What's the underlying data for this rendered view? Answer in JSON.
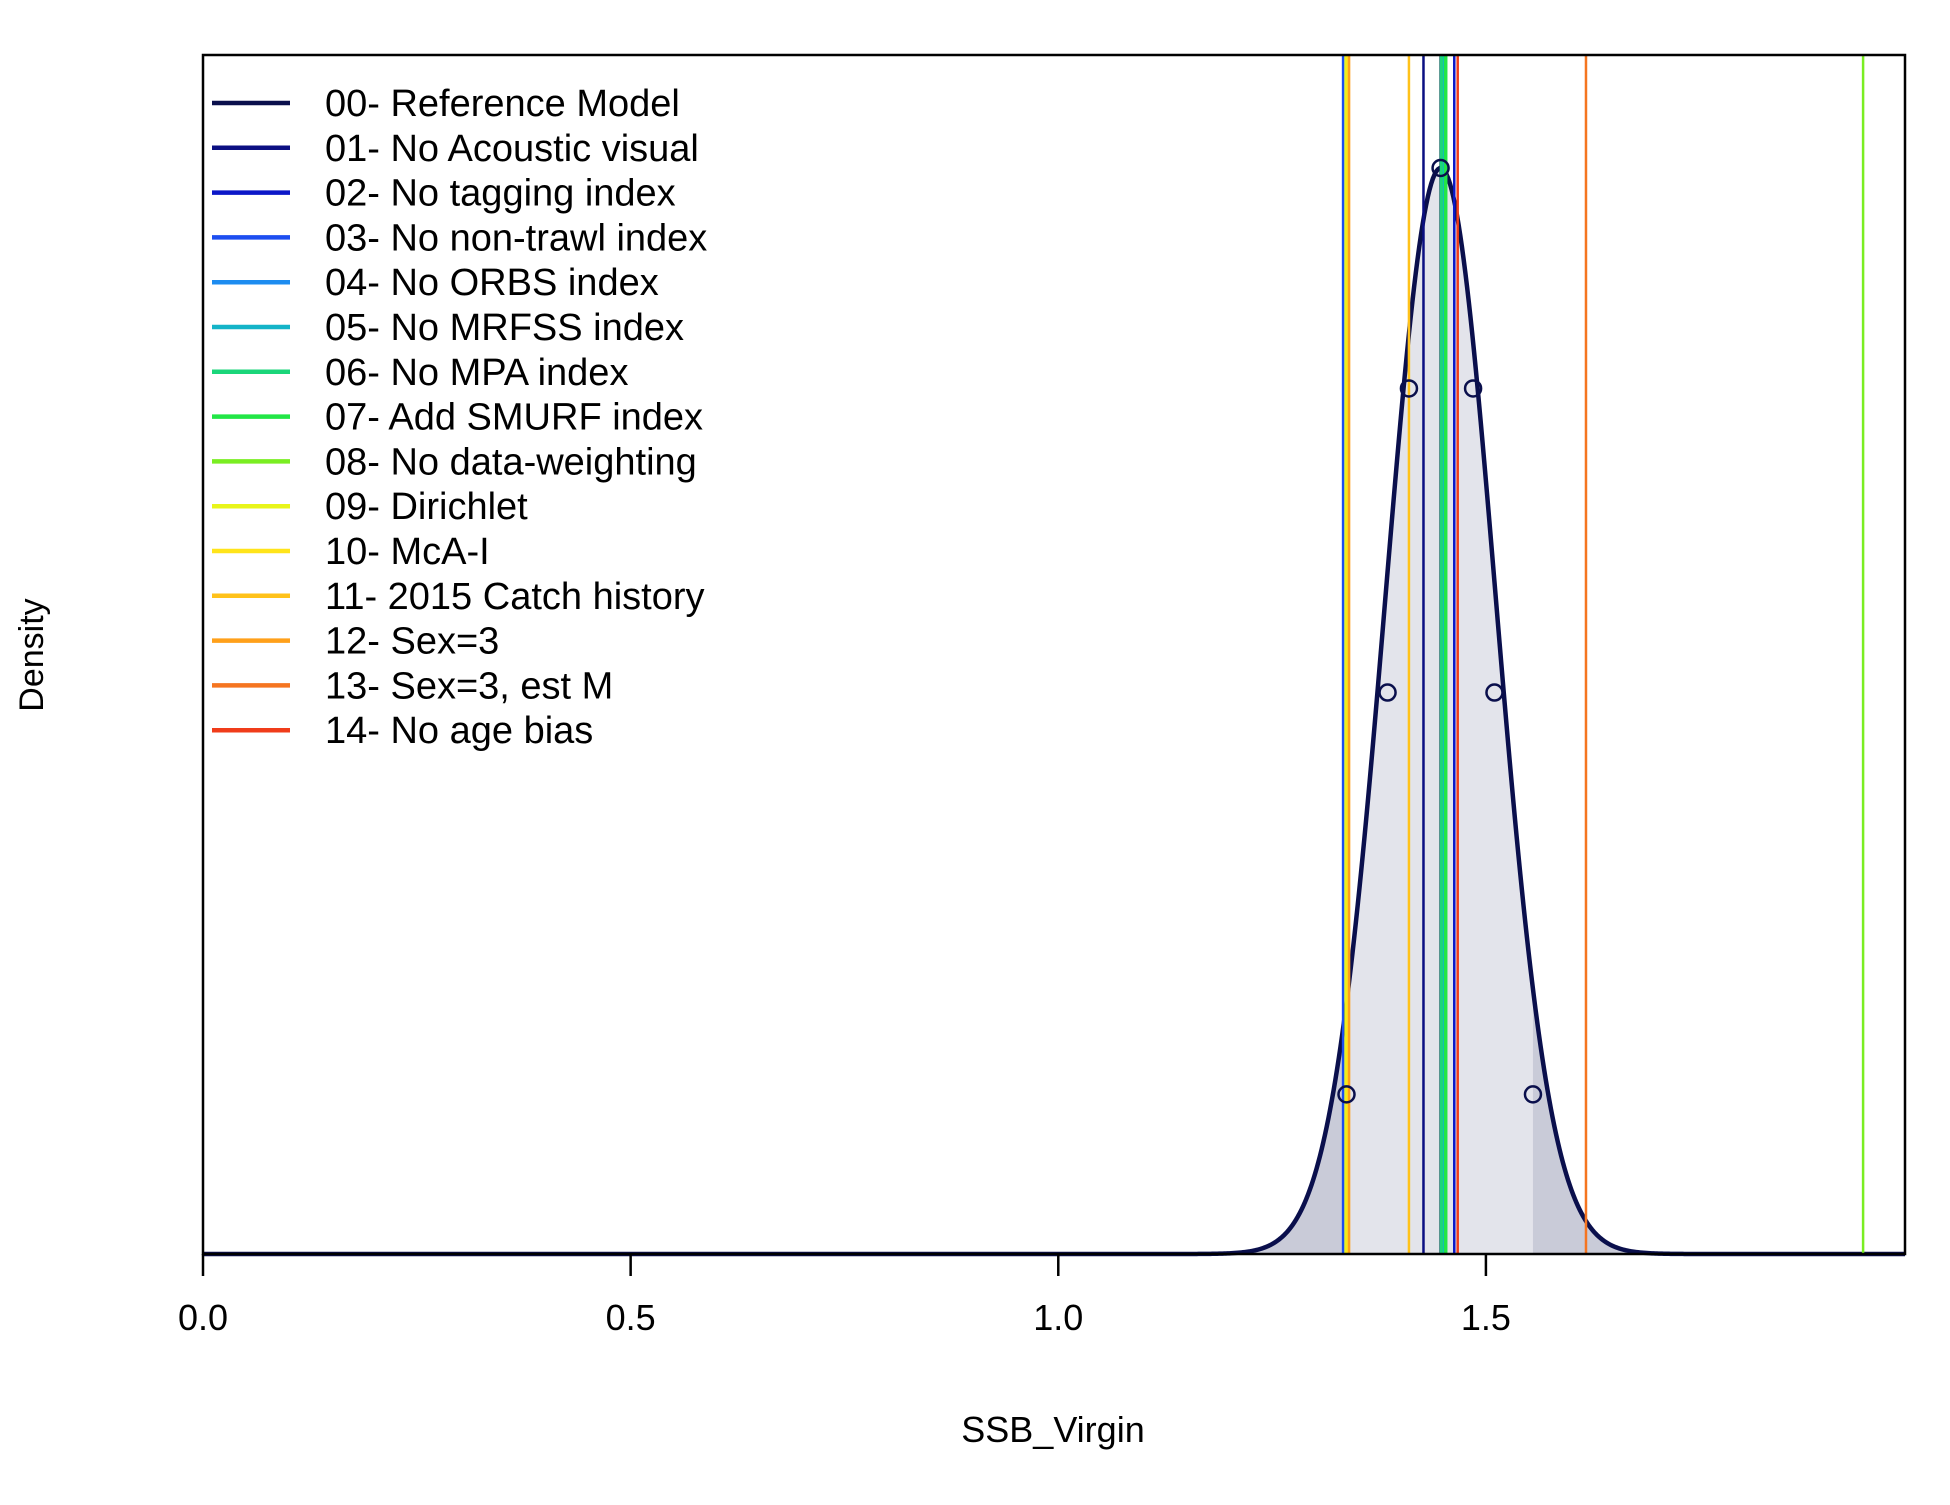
{
  "chart_data": {
    "type": "area",
    "title": "",
    "xlabel": "SSB_Virgin",
    "ylabel": "Density",
    "xlim": [
      0,
      1.99
    ],
    "ylim": [
      0,
      1
    ],
    "grid": false,
    "legend_position": "top-left",
    "x_ticks": [
      {
        "value": 0.0,
        "label": "0.0"
      },
      {
        "value": 0.5,
        "label": "0.5"
      },
      {
        "value": 1.0,
        "label": "1.0"
      },
      {
        "value": 1.5,
        "label": "1.5"
      }
    ],
    "density": {
      "mean": 1.447,
      "sd": 0.0643,
      "peak": 1.0,
      "shaded_interval": [
        1.333,
        1.555
      ],
      "curve_color": "#0a0f4c",
      "inner_fill": "#e3e4eb",
      "tail_fill": "#c9cbd8",
      "marker_points": [
        {
          "x": 1.337,
          "y": 0.147
        },
        {
          "x": 1.385,
          "y": 0.517
        },
        {
          "x": 1.41,
          "y": 0.797
        },
        {
          "x": 1.447,
          "y": 1.0
        },
        {
          "x": 1.485,
          "y": 0.797
        },
        {
          "x": 1.51,
          "y": 0.517
        },
        {
          "x": 1.555,
          "y": 0.147
        }
      ]
    },
    "series": [
      {
        "name": "00- Reference Model",
        "color": "#0a0f4c",
        "x": 1.447
      },
      {
        "name": "01- No Acoustic visual",
        "color": "#0b0f82",
        "x": 1.427
      },
      {
        "name": "02- No tagging index",
        "color": "#0b17c8",
        "x": 1.463
      },
      {
        "name": "03- No non-trawl index",
        "color": "#1d4ef0",
        "x": 1.333
      },
      {
        "name": "04- No ORBS index",
        "color": "#1d8cf0",
        "x": 1.452
      },
      {
        "name": "05- No MRFSS index",
        "color": "#14b4c8",
        "x": 1.45
      },
      {
        "name": "06- No MPA index",
        "color": "#1ad67a",
        "x": 1.448
      },
      {
        "name": "07- Add SMURF index",
        "color": "#22e646",
        "x": 1.453
      },
      {
        "name": "08- No data-weighting",
        "color": "#7aee22",
        "x": 1.941
      },
      {
        "name": "09- Dirichlet",
        "color": "#e8f51a",
        "x": 1.336
      },
      {
        "name": "10- McA-I",
        "color": "#ffe41a",
        "x": 1.338
      },
      {
        "name": "11- 2015 Catch history",
        "color": "#ffc21a",
        "x": 1.41
      },
      {
        "name": "12- Sex=3",
        "color": "#ffa01a",
        "x": 1.34
      },
      {
        "name": "13- Sex=3, est M",
        "color": "#f57520",
        "x": 1.617
      },
      {
        "name": "14- No age bias",
        "color": "#f03c1a",
        "x": 1.467
      }
    ]
  }
}
